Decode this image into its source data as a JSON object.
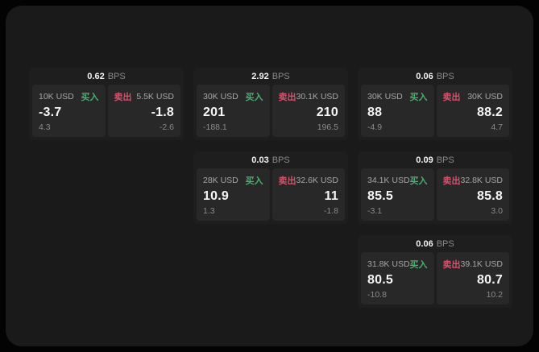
{
  "labels": {
    "bps_unit": "BPS",
    "buy": "买入",
    "sell": "卖出"
  },
  "colors": {
    "buy": "#4cae70",
    "sell": "#d8506a",
    "panel_bg": "#282828",
    "card_bg": "#1e1e1e",
    "surface_bg": "#1a1a1a"
  },
  "cards": [
    {
      "col": 1,
      "row": 1,
      "bps": "0.62",
      "buy": {
        "amount": "10K USD",
        "price": "-3.7",
        "delta": "4.3"
      },
      "sell": {
        "amount": "5.5K USD",
        "price": "-1.8",
        "delta": "-2.6"
      }
    },
    {
      "col": 2,
      "row": 1,
      "bps": "2.92",
      "buy": {
        "amount": "30K USD",
        "price": "201",
        "delta": "-188.1"
      },
      "sell": {
        "amount": "30.1K USD",
        "price": "210",
        "delta": "196.5"
      }
    },
    {
      "col": 3,
      "row": 1,
      "bps": "0.06",
      "buy": {
        "amount": "30K USD",
        "price": "88",
        "delta": "-4.9"
      },
      "sell": {
        "amount": "30K USD",
        "price": "88.2",
        "delta": "4.7"
      }
    },
    {
      "col": 2,
      "row": 2,
      "bps": "0.03",
      "buy": {
        "amount": "28K USD",
        "price": "10.9",
        "delta": "1.3"
      },
      "sell": {
        "amount": "32.6K USD",
        "price": "11",
        "delta": "-1.8"
      }
    },
    {
      "col": 3,
      "row": 2,
      "bps": "0.09",
      "buy": {
        "amount": "34.1K USD",
        "price": "85.5",
        "delta": "-3.1"
      },
      "sell": {
        "amount": "32.8K USD",
        "price": "85.8",
        "delta": "3.0"
      }
    },
    {
      "col": 3,
      "row": 3,
      "bps": "0.06",
      "buy": {
        "amount": "31.8K USD",
        "price": "80.5",
        "delta": "-10.8"
      },
      "sell": {
        "amount": "39.1K USD",
        "price": "80.7",
        "delta": "10.2"
      }
    }
  ]
}
